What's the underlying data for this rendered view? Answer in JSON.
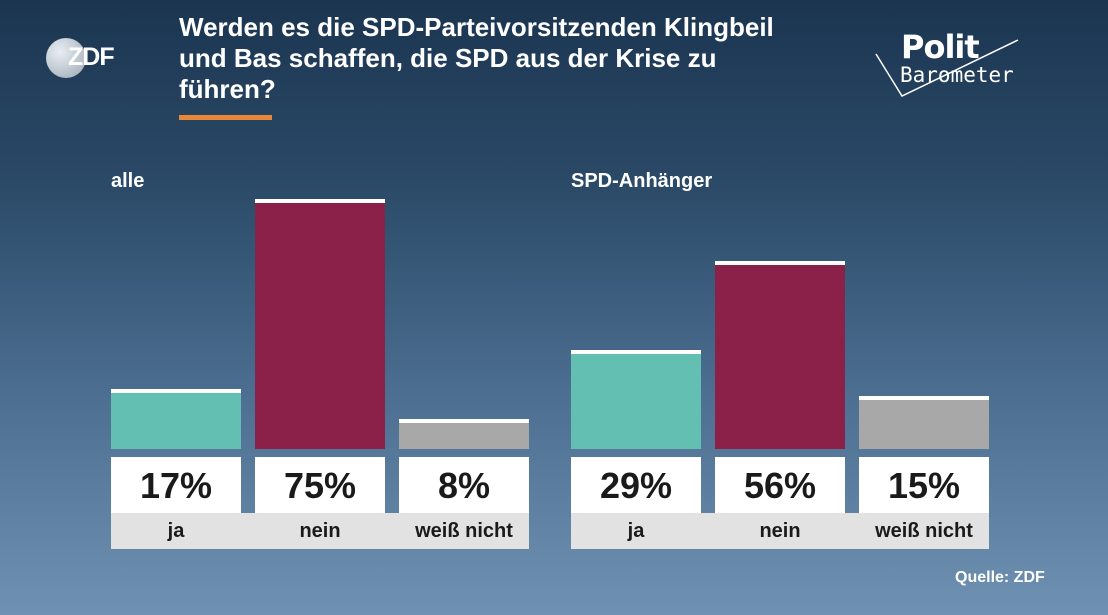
{
  "header": {
    "title": "Werden es die SPD-Parteivorsitzenden Klingbeil und Bas schaffen, die SPD aus der Krise zu führen?",
    "logo_left": "ZDF",
    "logo_right_line1": "Polit",
    "logo_right_line2": "Barometer"
  },
  "source": "Quelle: ZDF",
  "colors": {
    "ja": "#63bfb2",
    "nein": "#8b2148",
    "weiss_nicht": "#a8a8a8",
    "accent": "#e8863a"
  },
  "chart_data": {
    "type": "bar",
    "categories": [
      "ja",
      "nein",
      "weiß nicht"
    ],
    "ylim": [
      0,
      75
    ],
    "groups": [
      {
        "name": "alle",
        "values": [
          17,
          75,
          8
        ],
        "labels": [
          "17%",
          "75%",
          "8%"
        ]
      },
      {
        "name": "SPD-Anhänger",
        "values": [
          29,
          56,
          15
        ],
        "labels": [
          "29%",
          "56%",
          "15%"
        ]
      }
    ]
  }
}
